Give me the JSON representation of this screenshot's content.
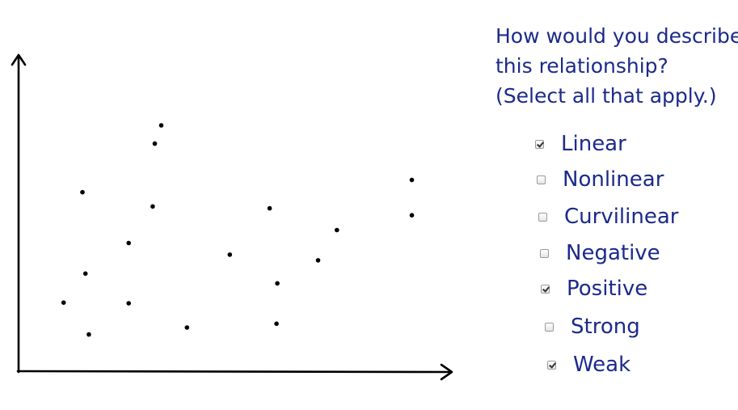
{
  "question": {
    "lines": [
      "How would you describe",
      "this relationship?",
      "(Select all that apply.)"
    ]
  },
  "options": [
    {
      "label": "Linear",
      "checked": true
    },
    {
      "label": "Nonlinear",
      "checked": false
    },
    {
      "label": "Curvilinear",
      "checked": false
    },
    {
      "label": "Negative",
      "checked": false
    },
    {
      "label": "Positive",
      "checked": true
    },
    {
      "label": "Strong",
      "checked": false
    },
    {
      "label": "Weak",
      "checked": true
    }
  ],
  "chart_data": {
    "type": "scatter",
    "title": "",
    "xlabel": "",
    "ylabel": "",
    "xlim": [
      0,
      100
    ],
    "ylim": [
      0,
      100
    ],
    "grid": false,
    "axis_ticks": false,
    "points": [
      {
        "x": 10.5,
        "y": 22.0
      },
      {
        "x": 15.6,
        "y": 31.2
      },
      {
        "x": 16.4,
        "y": 11.9
      },
      {
        "x": 14.9,
        "y": 57.0
      },
      {
        "x": 25.7,
        "y": 40.9
      },
      {
        "x": 25.7,
        "y": 21.8
      },
      {
        "x": 31.8,
        "y": 72.4
      },
      {
        "x": 31.3,
        "y": 52.5
      },
      {
        "x": 33.3,
        "y": 78.2
      },
      {
        "x": 39.3,
        "y": 14.1
      },
      {
        "x": 49.3,
        "y": 37.2
      },
      {
        "x": 58.6,
        "y": 51.9
      },
      {
        "x": 60.4,
        "y": 28.1
      },
      {
        "x": 60.2,
        "y": 15.3
      },
      {
        "x": 69.9,
        "y": 35.4
      },
      {
        "x": 74.3,
        "y": 45.0
      },
      {
        "x": 91.8,
        "y": 60.9
      },
      {
        "x": 91.8,
        "y": 49.7
      }
    ]
  }
}
